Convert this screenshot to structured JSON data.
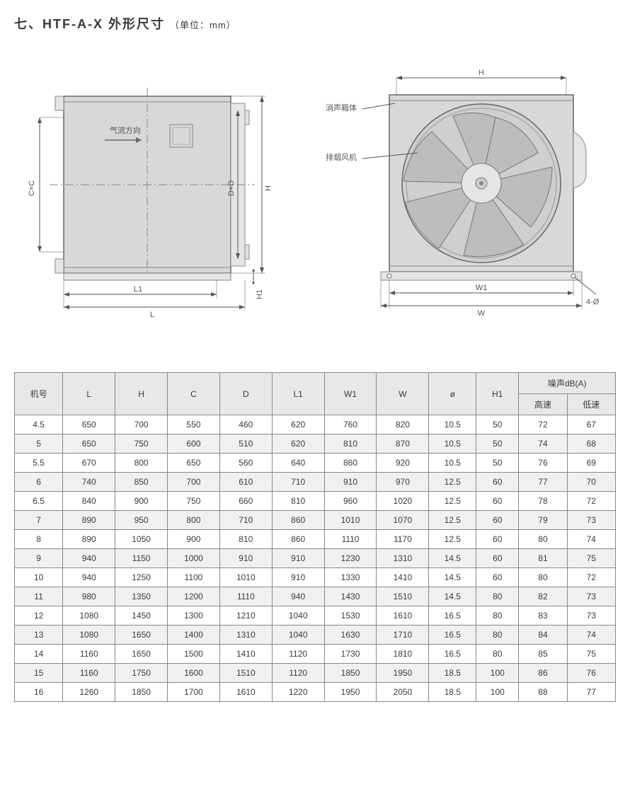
{
  "title_main": "七、HTF-A-X 外形尺寸",
  "title_unit": "（单位：mm）",
  "diagram_left": {
    "box_fill": "#d8d8d8",
    "box_stroke": "#666",
    "label_flow": "气流方向",
    "dim_CxC": "C×C",
    "dim_DxD": "D×D",
    "dim_H": "H",
    "dim_L1": "L1",
    "dim_L": "L",
    "dim_H1": "H1"
  },
  "diagram_right": {
    "box_fill": "#d8d8d8",
    "box_stroke": "#666",
    "callout_box": "消声箱体",
    "callout_fan": "排烟风机",
    "dim_H": "H",
    "dim_W1": "W1",
    "dim_W": "W",
    "dim_4phi": "4-Ø"
  },
  "table": {
    "header": {
      "col0": "机号",
      "col1": "L",
      "col2": "H",
      "col3": "C",
      "col4": "D",
      "col5": "L1",
      "col6": "W1",
      "col7": "W",
      "col8": "ø",
      "col9": "H1",
      "noise": "噪声dB(A)",
      "noise_hi": "高速",
      "noise_lo": "低速"
    },
    "rows": [
      [
        "4.5",
        "650",
        "700",
        "550",
        "460",
        "620",
        "760",
        "820",
        "10.5",
        "50",
        "72",
        "67"
      ],
      [
        "5",
        "650",
        "750",
        "600",
        "510",
        "620",
        "810",
        "870",
        "10.5",
        "50",
        "74",
        "68"
      ],
      [
        "5.5",
        "670",
        "800",
        "650",
        "560",
        "640",
        "860",
        "920",
        "10.5",
        "50",
        "76",
        "69"
      ],
      [
        "6",
        "740",
        "850",
        "700",
        "610",
        "710",
        "910",
        "970",
        "12.5",
        "60",
        "77",
        "70"
      ],
      [
        "6.5",
        "840",
        "900",
        "750",
        "660",
        "810",
        "960",
        "1020",
        "12.5",
        "60",
        "78",
        "72"
      ],
      [
        "7",
        "890",
        "950",
        "800",
        "710",
        "860",
        "1010",
        "1070",
        "12.5",
        "60",
        "79",
        "73"
      ],
      [
        "8",
        "890",
        "1050",
        "900",
        "810",
        "860",
        "1110",
        "1170",
        "12.5",
        "60",
        "80",
        "74"
      ],
      [
        "9",
        "940",
        "1150",
        "1000",
        "910",
        "910",
        "1230",
        "1310",
        "14.5",
        "60",
        "81",
        "75"
      ],
      [
        "10",
        "940",
        "1250",
        "1100",
        "1010",
        "910",
        "1330",
        "1410",
        "14.5",
        "60",
        "80",
        "72"
      ],
      [
        "11",
        "980",
        "1350",
        "1200",
        "1110",
        "940",
        "1430",
        "1510",
        "14.5",
        "80",
        "82",
        "73"
      ],
      [
        "12",
        "1080",
        "1450",
        "1300",
        "1210",
        "1040",
        "1530",
        "1610",
        "16.5",
        "80",
        "83",
        "73"
      ],
      [
        "13",
        "1080",
        "1650",
        "1400",
        "1310",
        "1040",
        "1630",
        "1710",
        "16.5",
        "80",
        "84",
        "74"
      ],
      [
        "14",
        "1160",
        "1650",
        "1500",
        "1410",
        "1120",
        "1730",
        "1810",
        "16.5",
        "80",
        "85",
        "75"
      ],
      [
        "15",
        "1160",
        "1750",
        "1600",
        "1510",
        "1120",
        "1850",
        "1950",
        "18.5",
        "100",
        "86",
        "76"
      ],
      [
        "16",
        "1260",
        "1850",
        "1700",
        "1610",
        "1220",
        "1950",
        "2050",
        "18.5",
        "100",
        "88",
        "77"
      ]
    ]
  }
}
